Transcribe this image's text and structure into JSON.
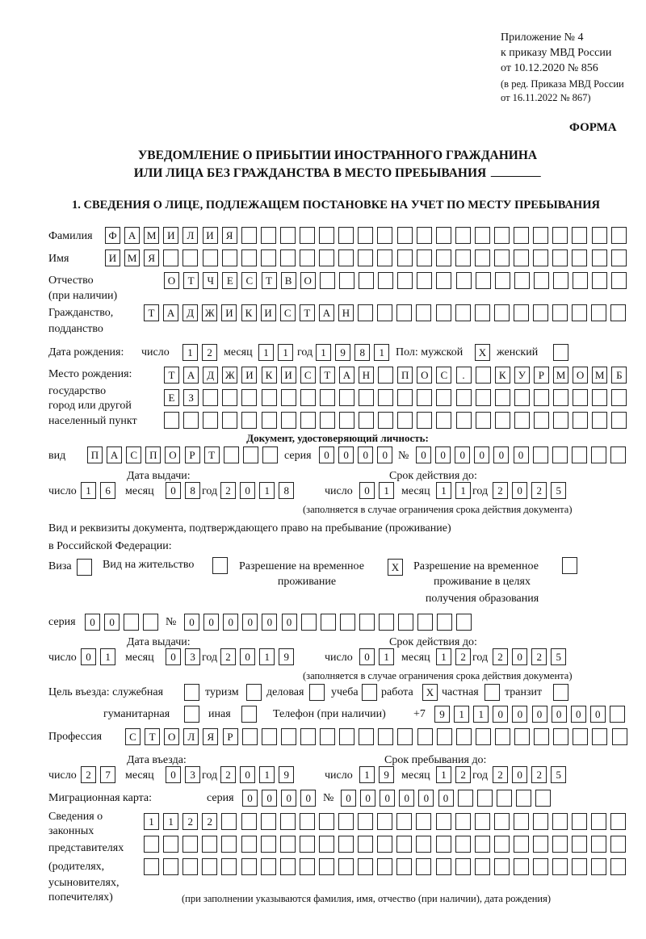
{
  "header": {
    "appendix": "Приложение № 4",
    "order": "к приказу МВД России",
    "order_date": "от 10.12.2020 № 856",
    "edition_1": "(в ред. Приказа МВД России",
    "edition_2": "от 16.11.2022 № 867)",
    "form_label": "ФОРМА",
    "title_line1": "УВЕДОМЛЕНИЕ О ПРИБЫТИИ ИНОСТРАННОГО ГРАЖДАНИНА",
    "title_line2": "ИЛИ ЛИЦА БЕЗ ГРАЖДАНСТВА В МЕСТО ПРЕБЫВАНИЯ",
    "section1": "1. СВЕДЕНИЯ О ЛИЦЕ, ПОДЛЕЖАЩЕМ ПОСТАНОВКЕ НА УЧЕТ ПО МЕСТУ ПРЕБЫВАНИЯ"
  },
  "person": {
    "surname_label": "Фамилия",
    "surname": "ФАМИЛИЯ",
    "name_label": "Имя",
    "name": "ИМЯ",
    "patronymic_label": "Отчество",
    "patronymic_note": "(при наличии)",
    "patronymic": "ОТЧЕСТВО",
    "citizenship_label1": "Гражданство,",
    "citizenship_label2": "подданство",
    "citizenship": "ТАДЖИКИСТАН",
    "birth_date_label": "Дата рождения:",
    "day_label": "число",
    "month_label": "месяц",
    "year_label": "год",
    "birth_day": "12",
    "birth_month": "11",
    "birth_year": "1981",
    "sex_label": "Пол: мужской",
    "sex_male": "X",
    "sex_female_label": "женский",
    "sex_female": "",
    "birthplace_label1": "Место рождения:",
    "birthplace_label2": "государство",
    "birthplace_label3": "город или другой",
    "birthplace_label4": "населенный пункт",
    "birthplace_1": "ТАДЖИКИСТАН ПОС. КУРМОМБ",
    "birthplace_2": "ЕЗ",
    "birthplace_3": ""
  },
  "identity_doc": {
    "heading": "Документ, удостоверяющий личность:",
    "type_label": "вид",
    "type": "ПАСПОРТ",
    "series_label": "серия",
    "series": "0000",
    "number_label": "№",
    "number": "000000",
    "issue_label": "Дата выдачи:",
    "valid_label": "Срок действия до:",
    "day_label": "число",
    "month_label": "месяц",
    "year_label": "год",
    "issue_day": "16",
    "issue_month": "08",
    "issue_year": "2018",
    "valid_day": "01",
    "valid_month": "11",
    "valid_year": "2025",
    "note": "(заполняется в случае ограничения срока действия документа)"
  },
  "stay_doc": {
    "intro_1": "Вид и реквизиты документа, подтверждающего право на пребывание (проживание)",
    "intro_2": "в Российской Федерации:",
    "visa_label": "Виза",
    "visa": "",
    "residence_label": "Вид на жительство",
    "residence": "",
    "temp_label_1": "Разрешение на временное",
    "temp_label_2": "проживание",
    "temp": "X",
    "edu_label_1": "Разрешение на временное",
    "edu_label_2": "проживание в целях",
    "edu_label_3": "получения образования",
    "edu": "",
    "series_label": "серия",
    "series": "00",
    "number_label": "№",
    "number": "000000",
    "issue_label": "Дата выдачи:",
    "valid_label": "Срок действия до:",
    "day_label": "число",
    "month_label": "месяц",
    "year_label": "год",
    "issue_day": "01",
    "issue_month": "03",
    "issue_year": "2019",
    "valid_day": "01",
    "valid_month": "12",
    "valid_year": "2025",
    "note": "(заполняется в случае ограничения срока действия документа)"
  },
  "purpose": {
    "label": "Цель въезда: служебная",
    "service": "",
    "tourism_label": "туризм",
    "tourism": "",
    "business_label": "деловая",
    "business": "",
    "study_label": "учеба",
    "study": "",
    "work_label": "работа",
    "work": "X",
    "private_label": "частная",
    "private": "",
    "transit_label": "транзит",
    "transit": "",
    "humanitarian_label": "гуманитарная",
    "humanitarian": "",
    "other_label": "иная",
    "other": ""
  },
  "phone": {
    "label": "Телефон (при наличии)",
    "prefix": "+7",
    "value": "911000000"
  },
  "profession": {
    "label": "Профессия",
    "value": "СТОЛЯР"
  },
  "entry": {
    "entry_label": "Дата въезда:",
    "stay_label": "Срок пребывания до:",
    "day_label": "число",
    "month_label": "месяц",
    "year_label": "год",
    "entry_day": "27",
    "entry_month": "03",
    "entry_year": "2019",
    "stay_day": "19",
    "stay_month": "12",
    "stay_year": "2025"
  },
  "migration_card": {
    "label": "Миграционная карта:",
    "series_label": "серия",
    "series": "0000",
    "number_label": "№",
    "number": "000000"
  },
  "representatives": {
    "label_1": "Сведения о",
    "label_2": "законных",
    "label_3": "представителях",
    "label_4": "(родителях,",
    "label_5": "усыновителях,",
    "label_6": "попечителях)",
    "row_1": "1122",
    "row_2": "",
    "row_3": "",
    "note": "(при заполнении указываются фамилия, имя, отчество (при наличии), дата рождения)"
  }
}
